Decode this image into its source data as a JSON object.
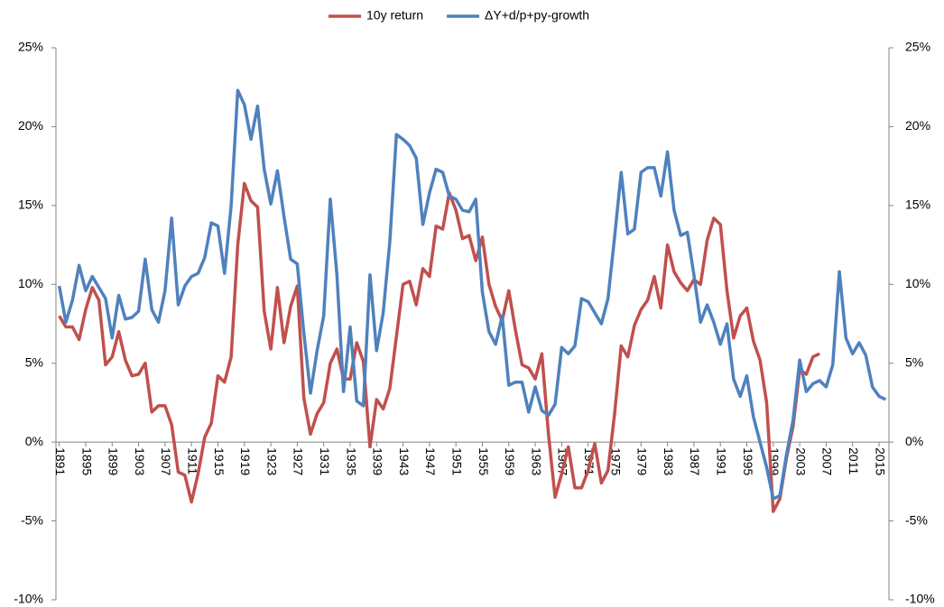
{
  "chart_data": {
    "type": "line",
    "x": [
      1891,
      1892,
      1893,
      1894,
      1895,
      1896,
      1897,
      1898,
      1899,
      1900,
      1901,
      1902,
      1903,
      1904,
      1905,
      1906,
      1907,
      1908,
      1909,
      1910,
      1911,
      1912,
      1913,
      1914,
      1915,
      1916,
      1917,
      1918,
      1919,
      1920,
      1921,
      1922,
      1923,
      1924,
      1925,
      1926,
      1927,
      1928,
      1929,
      1930,
      1931,
      1932,
      1933,
      1934,
      1935,
      1936,
      1937,
      1938,
      1939,
      1940,
      1941,
      1942,
      1943,
      1944,
      1945,
      1946,
      1947,
      1948,
      1949,
      1950,
      1951,
      1952,
      1953,
      1954,
      1955,
      1956,
      1957,
      1958,
      1959,
      1960,
      1961,
      1962,
      1963,
      1964,
      1965,
      1966,
      1967,
      1968,
      1969,
      1970,
      1971,
      1972,
      1973,
      1974,
      1975,
      1976,
      1977,
      1978,
      1979,
      1980,
      1981,
      1982,
      1983,
      1984,
      1985,
      1986,
      1987,
      1988,
      1989,
      1990,
      1991,
      1992,
      1993,
      1994,
      1995,
      1996,
      1997,
      1998,
      1999,
      2000,
      2001,
      2002,
      2003,
      2004,
      2005,
      2006,
      2007,
      2008,
      2009,
      2010,
      2011,
      2012,
      2013,
      2014,
      2015,
      2016
    ],
    "series": [
      {
        "name": "10y return",
        "color": "#c0504d",
        "values": [
          8.0,
          7.3,
          7.3,
          6.5,
          8.4,
          9.8,
          9.0,
          4.9,
          5.4,
          7.0,
          5.2,
          4.2,
          4.3,
          5.0,
          1.9,
          2.3,
          2.3,
          1.1,
          -1.9,
          -2.1,
          -3.8,
          -2.0,
          0.3,
          1.2,
          4.2,
          3.8,
          5.4,
          12.5,
          16.4,
          15.3,
          14.9,
          8.3,
          5.9,
          9.8,
          6.3,
          8.6,
          9.9,
          2.8,
          0.5,
          1.8,
          2.5,
          5.0,
          5.9,
          4.0,
          4.0,
          6.3,
          5.1,
          -0.3,
          2.7,
          2.1,
          3.4,
          6.7,
          10.0,
          10.2,
          8.7,
          11.0,
          10.5,
          13.7,
          13.5,
          15.8,
          14.7,
          12.9,
          13.1,
          11.5,
          13.0,
          10.0,
          8.6,
          7.7,
          9.6,
          7.1,
          4.9,
          4.7,
          4.0,
          5.6,
          0.5,
          -3.5,
          -2.0,
          -0.3,
          -2.9,
          -2.9,
          -1.8,
          -0.1,
          -2.6,
          -1.8,
          1.8,
          6.1,
          5.4,
          7.4,
          8.4,
          9.0,
          10.5,
          8.5,
          12.5,
          10.8,
          10.1,
          9.6,
          10.3,
          10.0,
          12.8,
          14.2,
          13.8,
          9.6,
          6.6,
          8.0,
          8.5,
          6.4,
          5.2,
          2.5,
          -4.4,
          -3.6,
          -1.0,
          1.0,
          4.6,
          4.3,
          5.4,
          5.6,
          null,
          null,
          null,
          null,
          null,
          null,
          null,
          null,
          null,
          null
        ]
      },
      {
        "name": "ΔY+d/p+py-growth",
        "color": "#4f81bd",
        "values": [
          9.9,
          7.6,
          9.0,
          11.2,
          9.6,
          10.5,
          9.8,
          9.1,
          6.6,
          9.3,
          7.8,
          7.9,
          8.3,
          11.6,
          8.4,
          7.6,
          9.6,
          14.2,
          8.7,
          9.9,
          10.5,
          10.7,
          11.7,
          13.9,
          13.7,
          10.7,
          15.0,
          22.3,
          21.4,
          19.2,
          21.3,
          17.3,
          15.1,
          17.2,
          14.3,
          11.6,
          11.3,
          6.9,
          3.1,
          5.8,
          8.0,
          15.4,
          10.6,
          3.2,
          7.3,
          2.6,
          2.3,
          10.6,
          5.8,
          8.2,
          12.7,
          19.5,
          19.2,
          18.8,
          18.0,
          13.8,
          15.8,
          17.3,
          17.1,
          15.6,
          15.4,
          14.7,
          14.6,
          15.4,
          9.5,
          7.0,
          6.2,
          8.0,
          3.6,
          3.8,
          3.8,
          1.9,
          3.5,
          2.0,
          1.7,
          2.4,
          6.0,
          5.6,
          6.1,
          9.1,
          8.9,
          8.2,
          7.5,
          9.1,
          13.0,
          17.1,
          13.2,
          13.5,
          17.1,
          17.4,
          17.4,
          15.6,
          18.4,
          14.7,
          13.1,
          13.3,
          10.6,
          7.6,
          8.7,
          7.6,
          6.2,
          7.5,
          4.0,
          2.9,
          4.2,
          1.6,
          0.0,
          -1.6,
          -3.6,
          -3.4,
          -0.8,
          1.4,
          5.2,
          3.2,
          3.7,
          3.9,
          3.5,
          4.9,
          10.8,
          6.6,
          5.6,
          6.3,
          5.5,
          3.5,
          2.9,
          2.7
        ]
      }
    ],
    "xlim": [
      1890.5,
      2016.5
    ],
    "xticks": [
      1891,
      1895,
      1899,
      1903,
      1907,
      1911,
      1915,
      1919,
      1923,
      1927,
      1931,
      1935,
      1939,
      1943,
      1947,
      1951,
      1955,
      1959,
      1963,
      1967,
      1971,
      1975,
      1979,
      1983,
      1987,
      1991,
      1995,
      1999,
      2003,
      2007,
      2011,
      2015
    ],
    "ylim": [
      -10,
      25
    ],
    "yticks": [
      {
        "value": -10,
        "label": "-10%"
      },
      {
        "value": -5,
        "label": "-5%"
      },
      {
        "value": 0,
        "label": "0%"
      },
      {
        "value": 5,
        "label": "5%"
      },
      {
        "value": 10,
        "label": "10%"
      },
      {
        "value": 15,
        "label": "15%"
      },
      {
        "value": 20,
        "label": "20%"
      },
      {
        "value": 25,
        "label": "25%"
      }
    ],
    "y2lim": [
      -10,
      25
    ],
    "y2ticks": [
      {
        "value": -10,
        "label": "-10%"
      },
      {
        "value": -5,
        "label": "-5%"
      },
      {
        "value": 0,
        "label": "0%"
      },
      {
        "value": 5,
        "label": "5%"
      },
      {
        "value": 10,
        "label": "10%"
      },
      {
        "value": 15,
        "label": "15%"
      },
      {
        "value": 20,
        "label": "20%"
      },
      {
        "value": 25,
        "label": "25%"
      }
    ],
    "legend": "top"
  }
}
